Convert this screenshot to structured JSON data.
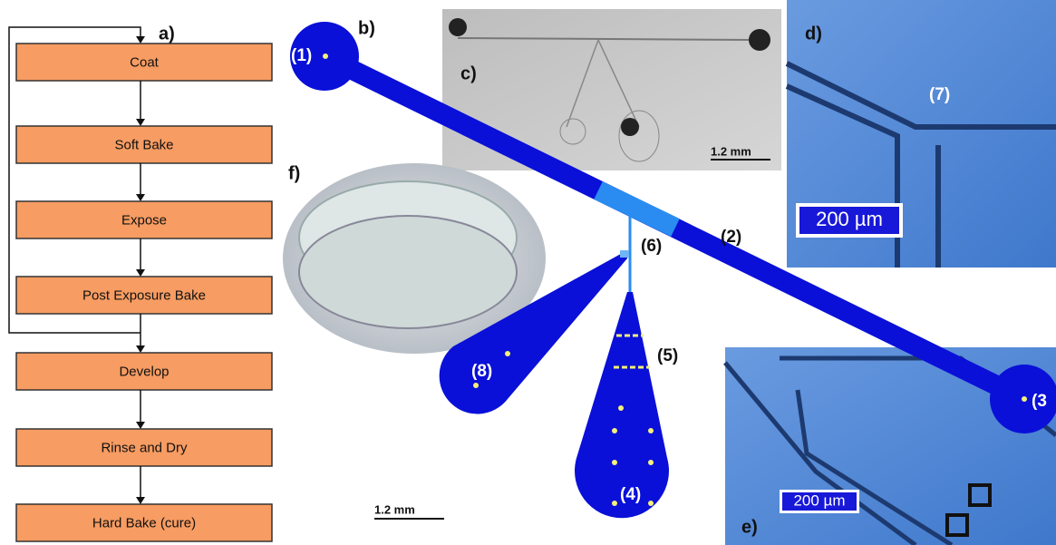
{
  "flowchart": {
    "label": "a)",
    "steps": [
      "Coat",
      "Soft Bake",
      "Expose",
      "Post Exposure Bake",
      "Develop",
      "Rinse and Dry",
      "Hard Bake (cure)"
    ]
  },
  "panel_b": {
    "label": "b)",
    "points": [
      "(1)",
      "(2)",
      "(3",
      "(4)",
      "(5)",
      "(6)",
      "(8)"
    ],
    "scale_bar": "1.2 mm"
  },
  "panel_c": {
    "label": "c)",
    "scale_bar": "1.2 mm"
  },
  "panel_d": {
    "label": "d)",
    "annotation": "(7)",
    "scale_bar": "200 µm"
  },
  "panel_e": {
    "label": "e)",
    "scale_bar": "200 µm"
  },
  "panel_f": {
    "label": "f)"
  }
}
